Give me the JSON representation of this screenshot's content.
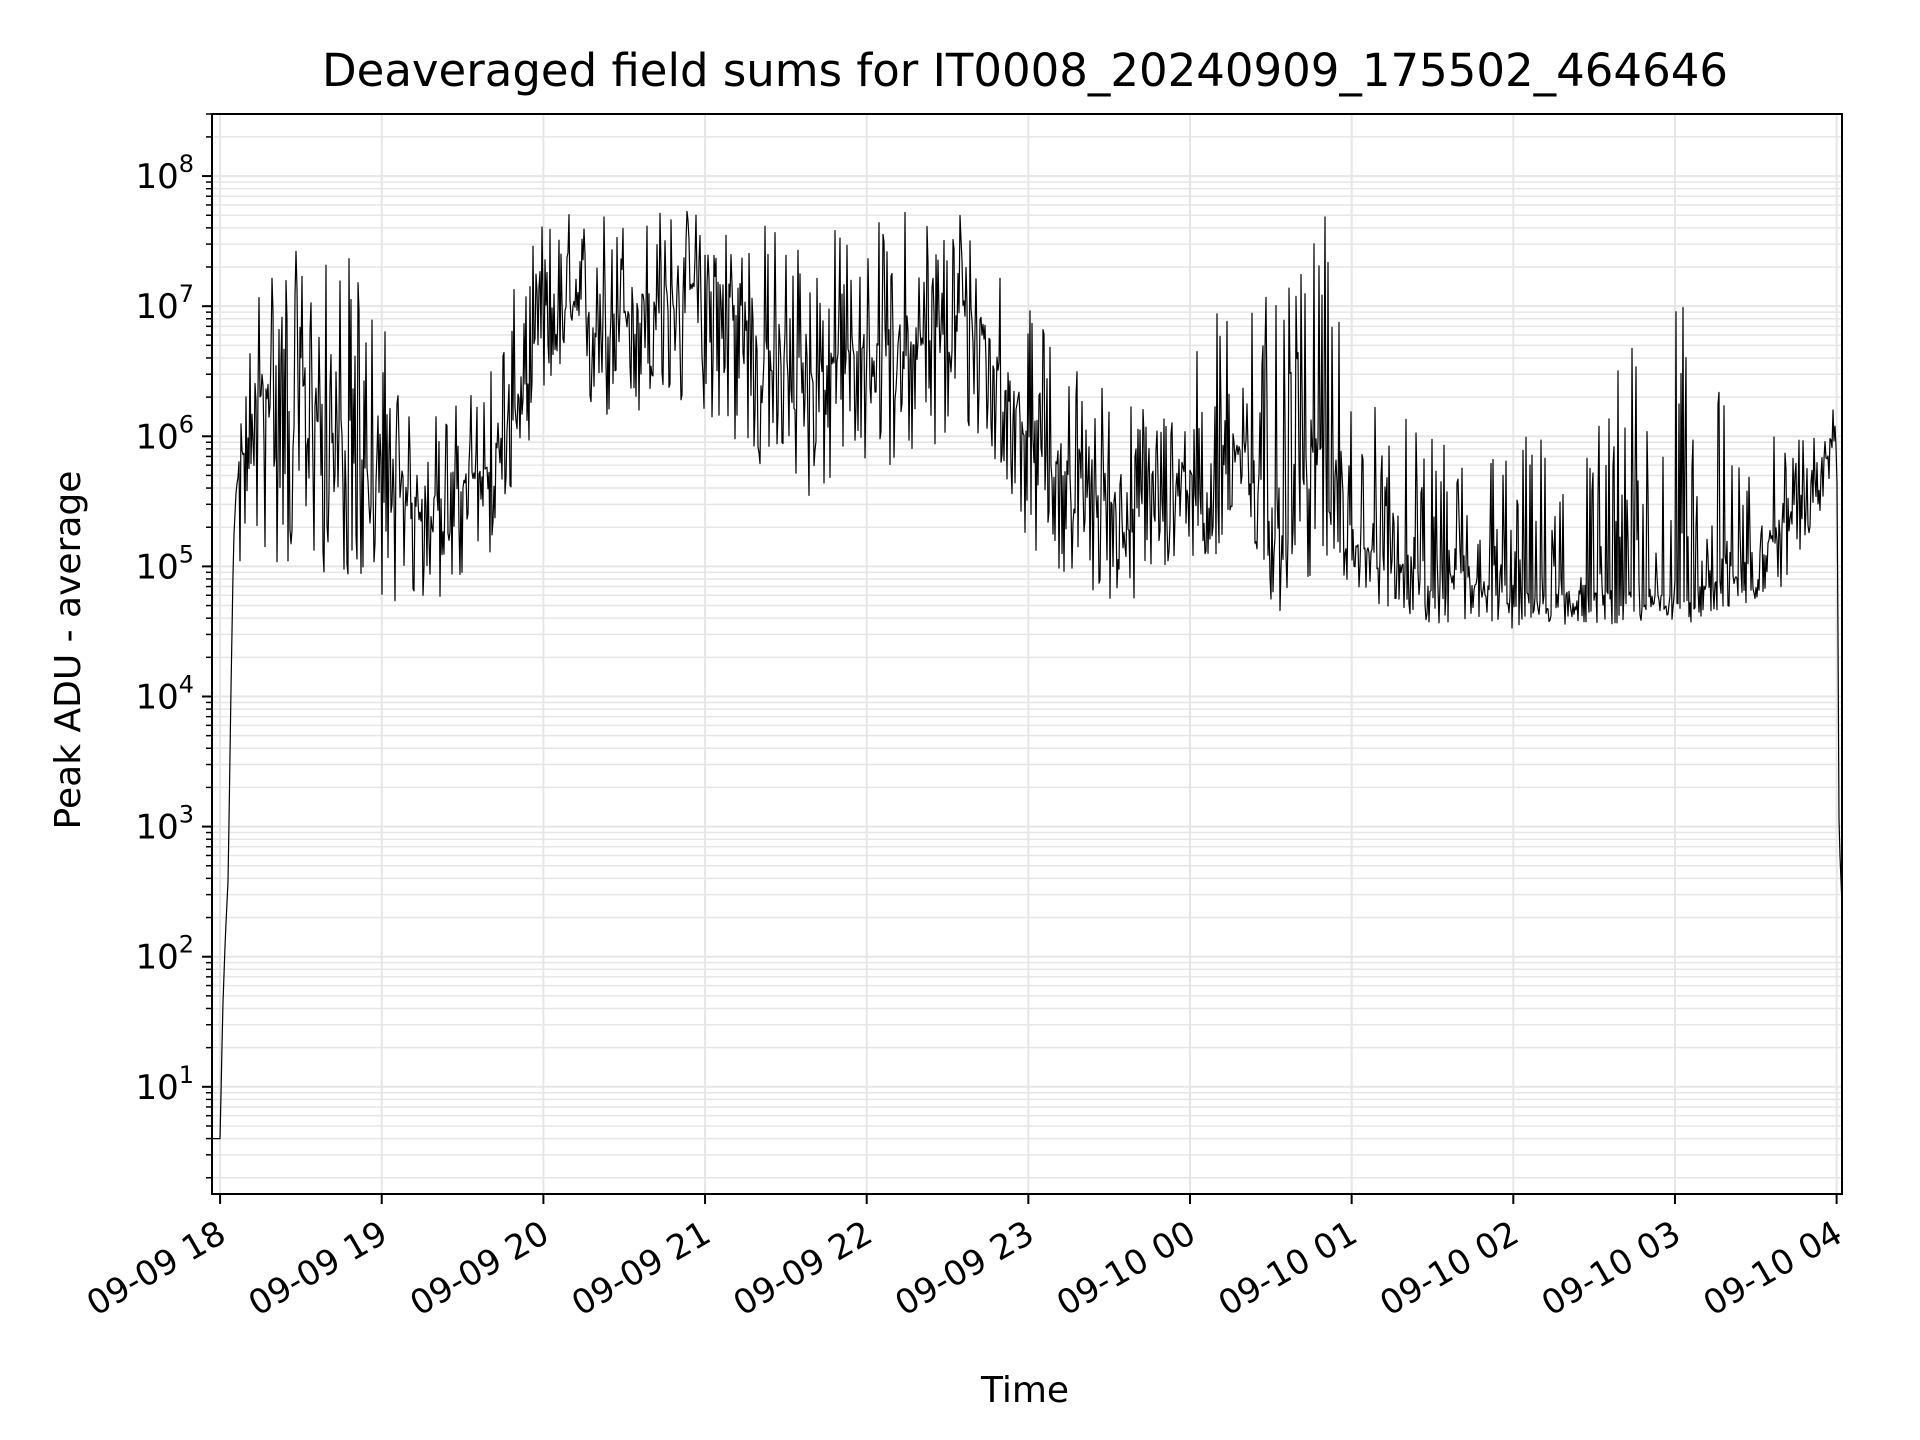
{
  "chart_data": {
    "type": "line",
    "title": "Deaveraged field sums for IT0008_20240909_175502_464646",
    "xlabel": "Time",
    "ylabel": "Peak ADU - average",
    "yscale": "log",
    "xlim": [
      "2024-09-09 17:57",
      "2024-09-10 04:02"
    ],
    "ylim": [
      1.5,
      300000000.0
    ],
    "grid": true,
    "line_color": "#000000",
    "grid_color": "#e6e6e6",
    "x_ticks": [
      {
        "t": "2024-09-09 18:00",
        "label": "09-09 18"
      },
      {
        "t": "2024-09-09 19:00",
        "label": "09-09 19"
      },
      {
        "t": "2024-09-09 20:00",
        "label": "09-09 20"
      },
      {
        "t": "2024-09-09 21:00",
        "label": "09-09 21"
      },
      {
        "t": "2024-09-09 22:00",
        "label": "09-09 22"
      },
      {
        "t": "2024-09-09 23:00",
        "label": "09-09 23"
      },
      {
        "t": "2024-09-10 00:00",
        "label": "09-10 00"
      },
      {
        "t": "2024-09-10 01:00",
        "label": "09-10 01"
      },
      {
        "t": "2024-09-10 02:00",
        "label": "09-10 02"
      },
      {
        "t": "2024-09-10 03:00",
        "label": "09-10 03"
      },
      {
        "t": "2024-09-10 04:00",
        "label": "09-10 04"
      }
    ],
    "y_ticks": [
      {
        "value": 10,
        "base": "10",
        "exp": "1"
      },
      {
        "value": 100,
        "base": "10",
        "exp": "2"
      },
      {
        "value": 1000,
        "base": "10",
        "exp": "3"
      },
      {
        "value": 10000,
        "base": "10",
        "exp": "4"
      },
      {
        "value": 100000,
        "base": "10",
        "exp": "5"
      },
      {
        "value": 1000000,
        "base": "10",
        "exp": "6"
      },
      {
        "value": 10000000,
        "base": "10",
        "exp": "7"
      },
      {
        "value": 100000000,
        "base": "10",
        "exp": "8"
      }
    ],
    "series": [
      {
        "x": [
          "2024-09-09 17:57",
          "2024-09-09 17:58",
          "2024-09-09 18:00",
          "2024-09-09 18:01",
          "2024-09-09 18:02",
          "2024-09-09 18:03",
          "2024-09-09 18:04",
          "2024-09-09 18:05",
          "2024-09-09 18:06",
          "2024-09-09 18:08",
          "2024-09-09 18:10",
          "2024-09-09 18:12",
          "2024-09-09 18:15",
          "2024-09-09 18:20",
          "2024-09-09 18:30",
          "2024-09-09 18:40",
          "2024-09-09 18:50",
          "2024-09-09 19:00",
          "2024-09-09 19:10",
          "2024-09-09 19:20",
          "2024-09-09 19:30",
          "2024-09-09 19:40",
          "2024-09-09 19:50",
          "2024-09-09 20:00",
          "2024-09-09 20:20",
          "2024-09-09 20:40",
          "2024-09-09 21:00",
          "2024-09-09 21:20",
          "2024-09-09 21:40",
          "2024-09-09 22:00",
          "2024-09-09 22:20",
          "2024-09-09 22:40",
          "2024-09-09 23:00",
          "2024-09-09 23:20",
          "2024-09-09 23:40",
          "2024-09-10 00:00",
          "2024-09-10 00:10",
          "2024-09-10 00:20",
          "2024-09-10 00:30",
          "2024-09-10 00:40",
          "2024-09-10 00:50",
          "2024-09-10 01:00",
          "2024-09-10 01:30",
          "2024-09-10 02:00",
          "2024-09-10 02:30",
          "2024-09-10 03:00",
          "2024-09-10 03:20",
          "2024-09-10 03:40",
          "2024-09-10 03:55",
          "2024-09-10 04:00",
          "2024-09-10 04:01",
          "2024-09-10 04:02"
        ],
        "y": [
          4,
          4,
          4,
          40,
          150,
          400,
          10000,
          150000,
          400000,
          700000,
          700000,
          1500000,
          2000000,
          3000000,
          2500000,
          1200000,
          600000,
          400000,
          300000,
          350000,
          400000,
          600000,
          1500000,
          10000000,
          8000000,
          10000000,
          15000000,
          5000000,
          3000000,
          5000000,
          5000000,
          8000000,
          1000000,
          400000,
          250000,
          500000,
          300000,
          1000000,
          300000,
          600000,
          1000000,
          150000,
          80000,
          60000,
          60000,
          60000,
          80000,
          200000,
          700000,
          1300000,
          800,
          250
        ],
        "noise_min": [
          0,
          0,
          0,
          0,
          0,
          0,
          0,
          0,
          0,
          0.2,
          0.2,
          0.1,
          0.06,
          0.03,
          0.03,
          0.07,
          0.12,
          0.15,
          0.15,
          0.15,
          0.15,
          0.2,
          0.3,
          0.2,
          0.15,
          0.12,
          0.1,
          0.1,
          0.1,
          0.12,
          0.12,
          0.12,
          0.15,
          0.15,
          0.2,
          0.25,
          0.3,
          0.25,
          0.1,
          0.1,
          0.1,
          0.4,
          0.45,
          0.55,
          0.6,
          0.6,
          0.5,
          0.35,
          0.4,
          0.6,
          0,
          0
        ],
        "noise_max": [
          0,
          0,
          0,
          0,
          0,
          0,
          0,
          0,
          0,
          3,
          5,
          8,
          15,
          12,
          10,
          20,
          40,
          30,
          5,
          5,
          5,
          8,
          10,
          5,
          8,
          6,
          4,
          10,
          15,
          8,
          15,
          10,
          10,
          10,
          8,
          5,
          40,
          50,
          30,
          30,
          50,
          20,
          12,
          20,
          20,
          200,
          10,
          5,
          2,
          1.5,
          0,
          0
        ]
      }
    ]
  }
}
